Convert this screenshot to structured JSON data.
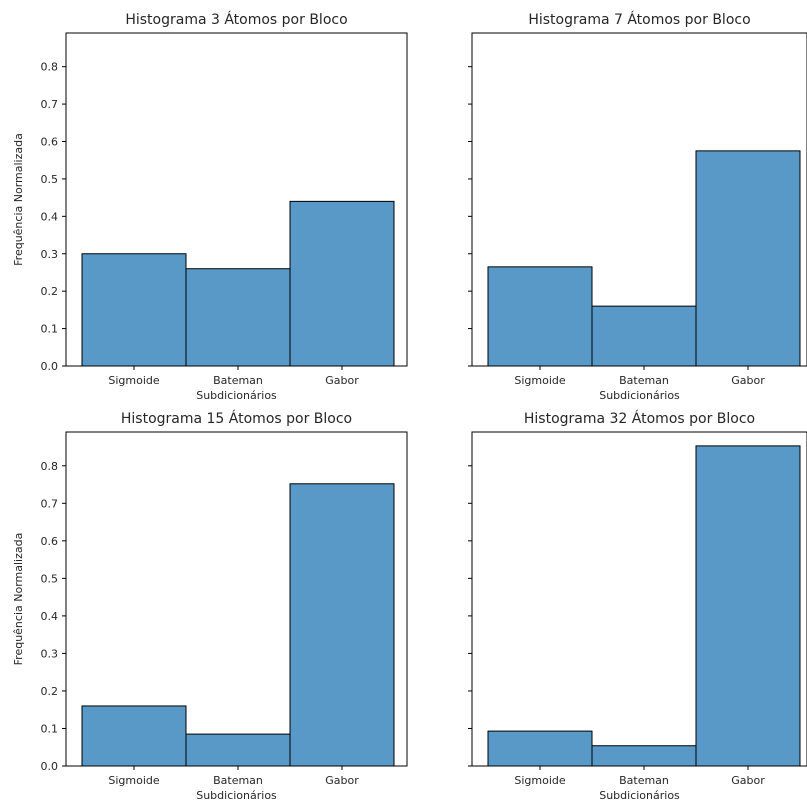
{
  "chart_data": [
    {
      "type": "bar",
      "title": "Histograma 3 Átomos por Bloco",
      "xlabel": "Subdicionários",
      "ylabel": "Frequência Normalizada",
      "categories": [
        "Sigmoide",
        "Bateman",
        "Gabor"
      ],
      "values": [
        0.3,
        0.26,
        0.44
      ],
      "ylim": [
        0,
        0.89
      ],
      "yticks": [
        "0.0",
        "0.1",
        "0.2",
        "0.3",
        "0.4",
        "0.5",
        "0.6",
        "0.7",
        "0.8"
      ],
      "grid": false
    },
    {
      "type": "bar",
      "title": "Histograma 7 Átomos por Bloco",
      "xlabel": "Subdicionários",
      "ylabel": "",
      "categories": [
        "Sigmoide",
        "Bateman",
        "Gabor"
      ],
      "values": [
        0.265,
        0.16,
        0.575
      ],
      "ylim": [
        0,
        0.89
      ],
      "yticks": [],
      "grid": false
    },
    {
      "type": "bar",
      "title": "Histograma 15 Átomos por Bloco",
      "xlabel": "Subdicionários",
      "ylabel": "Frequência Normalizada",
      "categories": [
        "Sigmoide",
        "Bateman",
        "Gabor"
      ],
      "values": [
        0.16,
        0.085,
        0.752
      ],
      "ylim": [
        0,
        0.89
      ],
      "yticks": [
        "0.0",
        "0.1",
        "0.2",
        "0.3",
        "0.4",
        "0.5",
        "0.6",
        "0.7",
        "0.8"
      ],
      "grid": false
    },
    {
      "type": "bar",
      "title": "Histograma 32 Átomos por Bloco",
      "xlabel": "Subdicionários",
      "ylabel": "",
      "categories": [
        "Sigmoide",
        "Bateman",
        "Gabor"
      ],
      "values": [
        0.093,
        0.054,
        0.853
      ],
      "ylim": [
        0,
        0.89
      ],
      "yticks": [],
      "grid": false
    }
  ],
  "colors": {
    "bar_fill": "#5899c8",
    "bar_edge": "#000000",
    "text": "#262626"
  }
}
